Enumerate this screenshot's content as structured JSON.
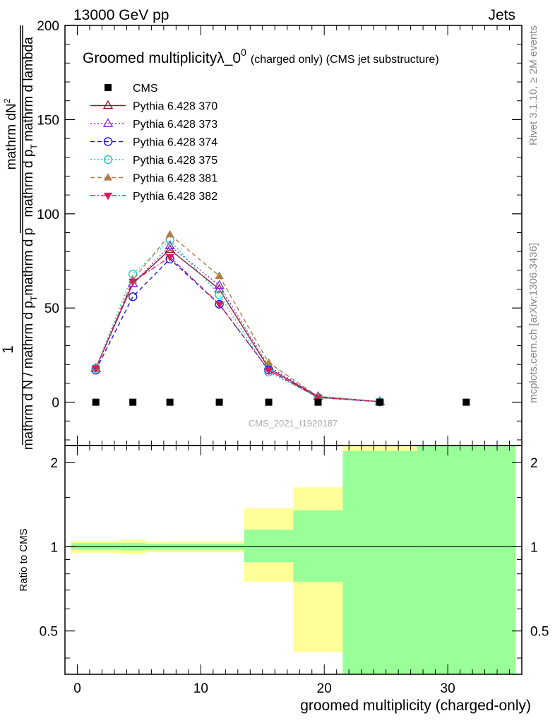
{
  "header": {
    "energy_label": "13000 GeV pp",
    "process_label": "Jets"
  },
  "side_labels": {
    "rivet": "Rivet 3.1.10, ≥ 2M events",
    "mcplots": "mcplots.cern.ch [arXiv:1306.3436]"
  },
  "watermark": "CMS_2021_I1920187",
  "chart_data": [
    {
      "type": "line",
      "title_main": "Groomed multiplicityλ_0",
      "title_sup": "0",
      "title_suffix": "(charged only) (CMS jet substructure)",
      "ylabel_num": "1",
      "ylabel_num_text": "mathrm dN",
      "ylabel_num_sup": "2",
      "ylabel_den_text": "mathrm d p",
      "ylabel_den_sub": "T",
      "ylabel_den_rest": "mathrm d lambda",
      "ylabel_lower": "mathrm d N / mathrm d p",
      "ylabel_lower_sub": "T",
      "ylabel_lower_rest": "mathrm d p",
      "ylim": [
        -23,
        200
      ],
      "xlim": [
        -1,
        36
      ],
      "yticks": [
        0,
        50,
        100,
        150,
        200
      ],
      "ytick_labels": [
        "0",
        "50",
        "100",
        "150",
        "200"
      ],
      "legend_position": "top-left",
      "series": [
        {
          "name": "CMS",
          "color": "#000000",
          "marker": "square",
          "line": "none",
          "x": [
            1.5,
            4.5,
            7.5,
            11.5,
            15.5,
            19.5,
            24.5,
            31.5
          ],
          "y": [
            0,
            0,
            0,
            0,
            0,
            0,
            0,
            0
          ]
        },
        {
          "name": "Pythia 6.428 370",
          "color": "#8b1a2e",
          "marker": "triangle-open",
          "line": "solid",
          "x": [
            1.5,
            4.5,
            7.5,
            11.5,
            15.5,
            19.5,
            24.5
          ],
          "y": [
            18,
            63,
            81,
            60,
            18,
            3,
            0.3
          ]
        },
        {
          "name": "Pythia 6.428 373",
          "color": "#8a2be2",
          "marker": "triangle-open",
          "line": "dotted",
          "x": [
            1.5,
            4.5,
            7.5,
            11.5,
            15.5,
            19.5,
            24.5
          ],
          "y": [
            18,
            63,
            83,
            62,
            19,
            3,
            0.3
          ]
        },
        {
          "name": "Pythia 6.428 374",
          "color": "#1a1adb",
          "marker": "circle-open",
          "line": "dashed",
          "x": [
            1.5,
            4.5,
            7.5,
            11.5,
            15.5,
            19.5,
            24.5
          ],
          "y": [
            17,
            56,
            76,
            52,
            17,
            2.5,
            0.2
          ]
        },
        {
          "name": "Pythia 6.428 375",
          "color": "#22c7b8",
          "marker": "circle-open",
          "line": "dotted",
          "x": [
            1.5,
            4.5,
            7.5,
            11.5,
            15.5,
            19.5,
            24.5
          ],
          "y": [
            18,
            68,
            86,
            57,
            16,
            2.5,
            0.2
          ]
        },
        {
          "name": "Pythia 6.428 381",
          "color": "#b07d48",
          "marker": "triangle-filled",
          "line": "dashed",
          "x": [
            1.5,
            4.5,
            7.5,
            11.5,
            15.5,
            19.5,
            24.5
          ],
          "y": [
            18,
            65,
            89,
            67,
            21,
            3,
            0.3
          ]
        },
        {
          "name": "Pythia 6.428 382",
          "color": "#d81b60",
          "marker": "triangle-down-filled",
          "line": "dashdot",
          "x": [
            1.5,
            4.5,
            7.5,
            11.5,
            15.5,
            19.5,
            24.5
          ],
          "y": [
            18,
            64,
            77,
            52,
            17,
            2.5,
            0.2
          ]
        }
      ]
    },
    {
      "type": "area",
      "ylabel": "Ratio to CMS",
      "xlabel": "groomed multiplicity (charged-only)",
      "xlim": [
        -1,
        36
      ],
      "ylim": [
        0.35,
        2.3
      ],
      "yticks": [
        0.5,
        1,
        2
      ],
      "ytick_labels": [
        "0.5",
        "1",
        "2"
      ],
      "xticks": [
        0,
        10,
        20,
        30
      ],
      "xtick_labels": [
        "0",
        "10",
        "20",
        "30"
      ],
      "reference_line": 1,
      "bands": {
        "outer_color": "#ffff99",
        "inner_color": "#99ff99",
        "bins": [
          {
            "x0": -0.5,
            "x1": 3.5,
            "outer": [
              0.95,
              1.05
            ],
            "inner": [
              0.975,
              1.03
            ]
          },
          {
            "x0": 3.5,
            "x1": 5.5,
            "outer": [
              0.94,
              1.06
            ],
            "inner": [
              0.97,
              1.03
            ]
          },
          {
            "x0": 5.5,
            "x1": 13.5,
            "outer": [
              0.955,
              1.045
            ],
            "inner": [
              0.975,
              1.025
            ]
          },
          {
            "x0": 13.5,
            "x1": 17.5,
            "outer": [
              0.75,
              1.37
            ],
            "inner": [
              0.88,
              1.15
            ]
          },
          {
            "x0": 17.5,
            "x1": 21.5,
            "outer": [
              0.42,
              1.63
            ],
            "inner": [
              0.75,
              1.35
            ]
          },
          {
            "x0": 21.5,
            "x1": 27.5,
            "outer": [
              0.35,
              2.3
            ],
            "inner": [
              0.35,
              2.2
            ]
          },
          {
            "x0": 27.5,
            "x1": 35.5,
            "outer": [
              0.35,
              2.3
            ],
            "inner": [
              0.35,
              2.3
            ]
          }
        ]
      }
    }
  ]
}
